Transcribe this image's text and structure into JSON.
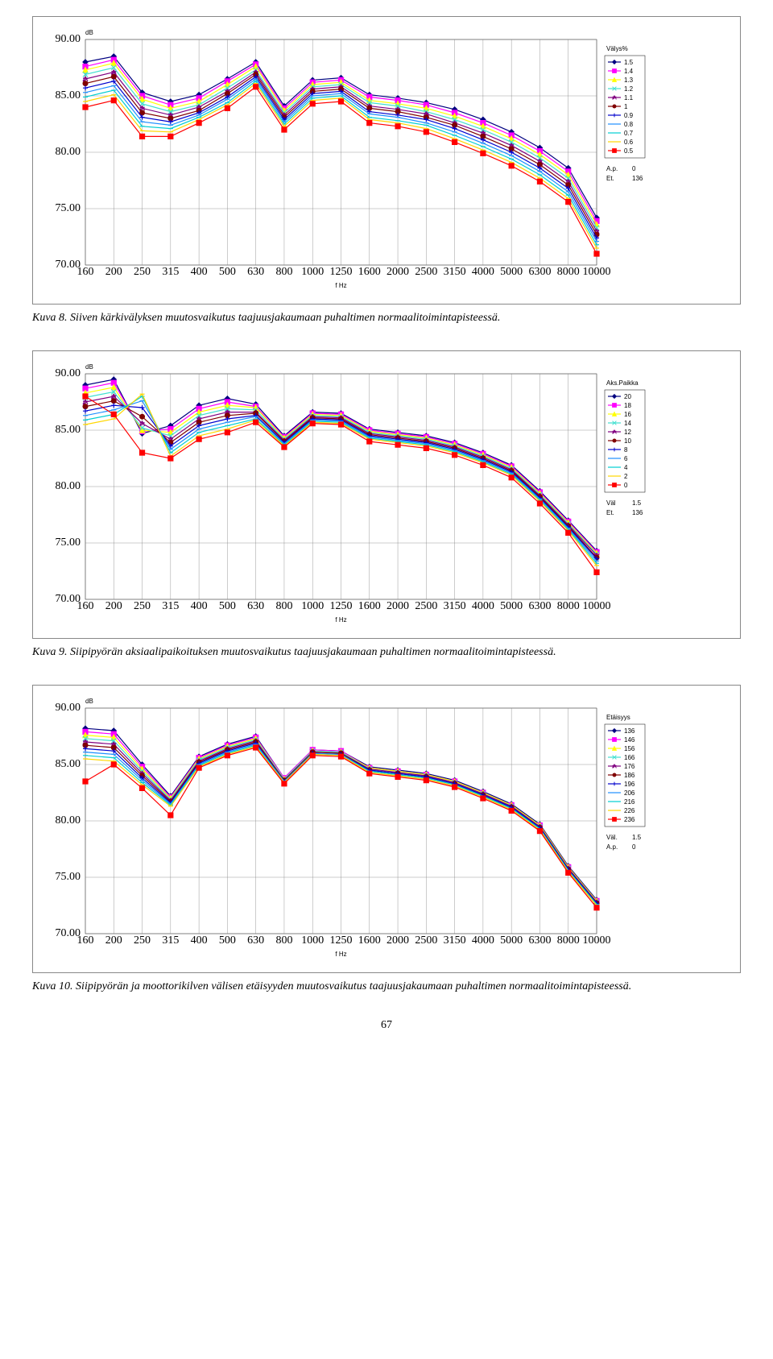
{
  "page_number": "67",
  "charts": [
    {
      "id": "chart1",
      "ylabel": "dB",
      "xlabel": "f Hz",
      "x_categories": [
        "160",
        "200",
        "250",
        "315",
        "400",
        "500",
        "630",
        "800",
        "1000",
        "1250",
        "1600",
        "2000",
        "2500",
        "3150",
        "4000",
        "5000",
        "6300",
        "8000",
        "10000"
      ],
      "y_ticks": [
        70.0,
        75.0,
        80.0,
        85.0,
        90.0
      ],
      "y_tick_labels": [
        "70.00",
        "75.00",
        "80.00",
        "85.00",
        "90.00"
      ],
      "ylim": [
        70,
        90
      ],
      "grid_color": "#808080",
      "bg_color": "#ffffff",
      "legend_title": "Välys%",
      "info": [
        {
          "label": "A.p.",
          "value": "0"
        },
        {
          "label": "Et.",
          "value": "136"
        }
      ],
      "series": [
        {
          "label": "1.5",
          "color": "#000080",
          "marker": "diamond",
          "values": [
            88.0,
            88.5,
            85.3,
            84.5,
            85.1,
            86.5,
            88.0,
            84.1,
            86.4,
            86.6,
            85.1,
            84.8,
            84.4,
            83.8,
            82.9,
            81.8,
            80.4,
            78.6,
            74.2
          ]
        },
        {
          "label": "1.4",
          "color": "#ff00ff",
          "marker": "square",
          "values": [
            87.6,
            88.2,
            85.0,
            84.2,
            84.8,
            86.3,
            87.8,
            83.9,
            86.2,
            86.4,
            84.9,
            84.6,
            84.2,
            83.5,
            82.6,
            81.5,
            80.1,
            78.3,
            73.9
          ]
        },
        {
          "label": "1.3",
          "color": "#ffff00",
          "marker": "triangle",
          "values": [
            87.3,
            87.9,
            84.7,
            83.9,
            84.5,
            86.0,
            87.6,
            83.7,
            86.0,
            86.2,
            84.6,
            84.3,
            83.9,
            83.2,
            82.3,
            81.2,
            79.8,
            78.0,
            73.6
          ]
        },
        {
          "label": "1.2",
          "color": "#40e0d0",
          "marker": "x",
          "values": [
            86.9,
            87.5,
            84.3,
            83.6,
            84.2,
            85.7,
            87.3,
            83.5,
            85.8,
            86.0,
            84.4,
            84.1,
            83.6,
            82.9,
            82.0,
            80.9,
            79.5,
            77.7,
            73.3
          ]
        },
        {
          "label": "1.1",
          "color": "#800080",
          "marker": "star",
          "values": [
            86.5,
            87.1,
            83.9,
            83.3,
            84.0,
            85.4,
            87.1,
            83.3,
            85.6,
            85.8,
            84.1,
            83.8,
            83.4,
            82.6,
            81.7,
            80.6,
            79.2,
            77.4,
            73.0
          ]
        },
        {
          "label": "1",
          "color": "#800000",
          "marker": "circle",
          "values": [
            86.1,
            86.7,
            83.5,
            83.0,
            83.7,
            85.2,
            86.9,
            83.1,
            85.4,
            85.6,
            83.9,
            83.6,
            83.1,
            82.4,
            81.4,
            80.3,
            78.9,
            77.1,
            72.7
          ]
        },
        {
          "label": "0.9",
          "color": "#0000cd",
          "marker": "plus",
          "values": [
            85.7,
            86.3,
            83.1,
            82.7,
            83.5,
            84.9,
            86.7,
            82.9,
            85.2,
            85.4,
            83.6,
            83.3,
            82.9,
            82.1,
            81.1,
            80.0,
            78.6,
            76.8,
            72.4
          ]
        },
        {
          "label": "0.8",
          "color": "#1e90ff",
          "marker": "dash",
          "values": [
            85.3,
            85.9,
            82.7,
            82.4,
            83.3,
            84.7,
            86.5,
            82.7,
            85.0,
            85.2,
            83.4,
            83.1,
            82.6,
            81.8,
            80.8,
            79.7,
            78.3,
            76.5,
            72.1
          ]
        },
        {
          "label": "0.7",
          "color": "#00ced1",
          "marker": "dash",
          "values": [
            84.9,
            85.5,
            82.3,
            82.1,
            83.1,
            84.4,
            86.3,
            82.5,
            84.8,
            85.0,
            83.1,
            82.8,
            82.4,
            81.5,
            80.5,
            79.4,
            78.0,
            76.2,
            71.8
          ]
        },
        {
          "label": "0.6",
          "color": "#ffd700",
          "marker": "dash",
          "values": [
            84.5,
            85.1,
            81.9,
            81.8,
            82.9,
            84.2,
            86.1,
            82.3,
            84.6,
            84.8,
            82.9,
            82.6,
            82.1,
            81.2,
            80.2,
            79.1,
            77.7,
            75.9,
            71.5
          ]
        },
        {
          "label": "0.5",
          "color": "#ff0000",
          "marker": "square",
          "values": [
            84.0,
            84.6,
            81.4,
            81.4,
            82.6,
            83.9,
            85.8,
            82.0,
            84.3,
            84.5,
            82.6,
            82.3,
            81.8,
            80.9,
            79.9,
            78.8,
            77.4,
            75.6,
            71.0
          ]
        }
      ],
      "caption": "Kuva 8. Siiven kärkivälyksen muutosvaikutus taajuusjakaumaan puhaltimen normaalitoimintapisteessä."
    },
    {
      "id": "chart2",
      "ylabel": "dB",
      "xlabel": "f Hz",
      "x_categories": [
        "160",
        "200",
        "250",
        "315",
        "400",
        "500",
        "630",
        "800",
        "1000",
        "1250",
        "1600",
        "2000",
        "2500",
        "3150",
        "4000",
        "5000",
        "6300",
        "8000",
        "10000"
      ],
      "y_ticks": [
        70.0,
        75.0,
        80.0,
        85.0,
        90.0
      ],
      "y_tick_labels": [
        "70.00",
        "75.00",
        "80.00",
        "85.00",
        "90.00"
      ],
      "ylim": [
        70,
        90
      ],
      "grid_color": "#808080",
      "bg_color": "#ffffff",
      "legend_title": "Aks.Paikka",
      "info": [
        {
          "label": "Väl",
          "value": "1.5"
        },
        {
          "label": "Et.",
          "value": "136"
        }
      ],
      "series": [
        {
          "label": "20",
          "color": "#000080",
          "marker": "diamond",
          "values": [
            89.0,
            89.5,
            84.7,
            85.4,
            87.2,
            87.8,
            87.3,
            84.5,
            86.6,
            86.5,
            85.1,
            84.8,
            84.5,
            83.9,
            83.0,
            81.9,
            79.6,
            77.0,
            74.3
          ]
        },
        {
          "label": "18",
          "color": "#ff00ff",
          "marker": "square",
          "values": [
            88.7,
            89.2,
            84.9,
            85.1,
            86.9,
            87.5,
            87.1,
            84.4,
            86.5,
            86.4,
            85.0,
            84.7,
            84.4,
            83.8,
            82.9,
            81.8,
            79.5,
            76.9,
            74.2
          ]
        },
        {
          "label": "16",
          "color": "#ffff00",
          "marker": "triangle",
          "values": [
            88.3,
            88.8,
            85.0,
            84.8,
            86.6,
            87.2,
            87.0,
            84.3,
            86.4,
            86.3,
            84.9,
            84.6,
            84.3,
            83.7,
            82.8,
            81.7,
            79.4,
            76.8,
            74.1
          ]
        },
        {
          "label": "14",
          "color": "#40e0d0",
          "marker": "x",
          "values": [
            87.9,
            88.4,
            85.2,
            84.5,
            86.3,
            86.9,
            86.8,
            84.2,
            86.3,
            86.2,
            84.8,
            84.5,
            84.2,
            83.6,
            82.7,
            81.6,
            79.3,
            76.7,
            74.0
          ]
        },
        {
          "label": "12",
          "color": "#800080",
          "marker": "star",
          "values": [
            87.5,
            88.0,
            85.6,
            84.2,
            86.0,
            86.6,
            86.6,
            84.1,
            86.2,
            86.1,
            84.7,
            84.4,
            84.1,
            83.5,
            82.6,
            81.5,
            79.2,
            76.6,
            73.9
          ]
        },
        {
          "label": "10",
          "color": "#800000",
          "marker": "circle",
          "values": [
            87.1,
            87.6,
            86.2,
            83.9,
            85.7,
            86.3,
            86.5,
            84.0,
            86.1,
            86.0,
            84.6,
            84.3,
            84.0,
            83.4,
            82.5,
            81.4,
            79.1,
            76.5,
            73.7
          ]
        },
        {
          "label": "8",
          "color": "#0000cd",
          "marker": "plus",
          "values": [
            86.7,
            87.2,
            87.0,
            83.6,
            85.4,
            86.0,
            86.3,
            83.9,
            86.0,
            85.9,
            84.5,
            84.2,
            83.9,
            83.3,
            82.4,
            81.3,
            79.0,
            76.4,
            73.6
          ]
        },
        {
          "label": "6",
          "color": "#1e90ff",
          "marker": "dash",
          "values": [
            86.3,
            86.8,
            87.6,
            83.3,
            85.1,
            85.7,
            86.2,
            83.8,
            85.9,
            85.8,
            84.4,
            84.1,
            83.8,
            83.2,
            82.3,
            81.2,
            78.9,
            76.3,
            73.4
          ]
        },
        {
          "label": "4",
          "color": "#00ced1",
          "marker": "dash",
          "values": [
            85.9,
            86.4,
            88.0,
            83.0,
            84.8,
            85.4,
            86.0,
            83.7,
            85.8,
            85.7,
            84.3,
            84.0,
            83.7,
            83.1,
            82.2,
            81.1,
            78.8,
            76.2,
            73.2
          ]
        },
        {
          "label": "2",
          "color": "#ffd700",
          "marker": "dash",
          "values": [
            85.5,
            86.0,
            88.2,
            82.7,
            84.5,
            85.1,
            85.9,
            83.6,
            85.7,
            85.6,
            84.2,
            83.9,
            83.6,
            83.0,
            82.1,
            81.0,
            78.7,
            76.1,
            73.0
          ]
        },
        {
          "label": "0",
          "color": "#ff0000",
          "marker": "square",
          "values": [
            88.0,
            86.4,
            83.0,
            82.5,
            84.2,
            84.8,
            85.7,
            83.5,
            85.6,
            85.5,
            84.0,
            83.7,
            83.4,
            82.8,
            81.9,
            80.8,
            78.5,
            75.9,
            72.4
          ]
        }
      ],
      "caption": "Kuva 9. Siipipyörän aksiaalipaikoituksen muutosvaikutus taajuusjakaumaan puhaltimen normaalitoimintapisteessä."
    },
    {
      "id": "chart3",
      "ylabel": "dB",
      "xlabel": "f Hz",
      "x_categories": [
        "160",
        "200",
        "250",
        "315",
        "400",
        "500",
        "630",
        "800",
        "1000",
        "1250",
        "1600",
        "2000",
        "2500",
        "3150",
        "4000",
        "5000",
        "6300",
        "8000",
        "10000"
      ],
      "y_ticks": [
        70.0,
        75.0,
        80.0,
        85.0,
        90.0
      ],
      "y_tick_labels": [
        "70.00",
        "75.00",
        "80.00",
        "85.00",
        "90.00"
      ],
      "ylim": [
        70,
        90
      ],
      "grid_color": "#808080",
      "bg_color": "#ffffff",
      "legend_title": "Etäisyys",
      "info": [
        {
          "label": "Väl.",
          "value": "1.5"
        },
        {
          "label": "A.p.",
          "value": "0"
        }
      ],
      "series": [
        {
          "label": "136",
          "color": "#000080",
          "marker": "diamond",
          "values": [
            88.2,
            88.0,
            85.0,
            82.2,
            85.7,
            86.8,
            87.5,
            83.8,
            86.3,
            86.2,
            84.8,
            84.5,
            84.2,
            83.6,
            82.6,
            81.5,
            79.7,
            76.0,
            73.0
          ]
        },
        {
          "label": "146",
          "color": "#ff00ff",
          "marker": "square",
          "values": [
            87.9,
            87.7,
            84.8,
            82.1,
            85.6,
            86.7,
            87.4,
            83.8,
            86.3,
            86.2,
            84.7,
            84.4,
            84.1,
            83.5,
            82.5,
            81.4,
            79.6,
            75.9,
            72.9
          ]
        },
        {
          "label": "156",
          "color": "#ffff00",
          "marker": "triangle",
          "values": [
            87.6,
            87.4,
            84.6,
            82.0,
            85.5,
            86.6,
            87.3,
            83.7,
            86.2,
            86.1,
            84.7,
            84.4,
            84.1,
            83.5,
            82.5,
            81.4,
            79.6,
            75.9,
            72.9
          ]
        },
        {
          "label": "166",
          "color": "#40e0d0",
          "marker": "x",
          "values": [
            87.3,
            87.1,
            84.4,
            81.9,
            85.4,
            86.5,
            87.2,
            83.7,
            86.2,
            86.1,
            84.6,
            84.3,
            84.0,
            83.4,
            82.4,
            81.3,
            79.5,
            75.8,
            72.8
          ]
        },
        {
          "label": "176",
          "color": "#800080",
          "marker": "star",
          "values": [
            87.0,
            86.8,
            84.2,
            81.8,
            85.3,
            86.4,
            87.1,
            83.6,
            86.1,
            86.0,
            84.6,
            84.3,
            84.0,
            83.4,
            82.4,
            81.3,
            79.5,
            75.8,
            72.8
          ]
        },
        {
          "label": "186",
          "color": "#800000",
          "marker": "circle",
          "values": [
            86.7,
            86.5,
            84.0,
            81.7,
            85.2,
            86.3,
            87.0,
            83.6,
            86.1,
            86.0,
            84.5,
            84.2,
            83.9,
            83.3,
            82.3,
            81.2,
            79.4,
            75.7,
            72.7
          ]
        },
        {
          "label": "196",
          "color": "#0000cd",
          "marker": "plus",
          "values": [
            86.4,
            86.2,
            83.8,
            81.6,
            85.1,
            86.2,
            86.9,
            83.5,
            86.0,
            85.9,
            84.5,
            84.2,
            83.9,
            83.3,
            82.3,
            81.2,
            79.4,
            75.7,
            72.7
          ]
        },
        {
          "label": "206",
          "color": "#1e90ff",
          "marker": "dash",
          "values": [
            86.1,
            85.9,
            83.6,
            81.5,
            85.0,
            86.1,
            86.8,
            83.5,
            86.0,
            85.9,
            84.4,
            84.1,
            83.8,
            83.2,
            82.2,
            81.1,
            79.3,
            75.6,
            72.6
          ]
        },
        {
          "label": "216",
          "color": "#00ced1",
          "marker": "dash",
          "values": [
            85.8,
            85.6,
            83.4,
            81.4,
            84.9,
            86.0,
            86.7,
            83.4,
            85.9,
            85.8,
            84.4,
            84.1,
            83.8,
            83.2,
            82.2,
            81.1,
            79.3,
            75.6,
            72.6
          ]
        },
        {
          "label": "226",
          "color": "#ffd700",
          "marker": "dash",
          "values": [
            85.5,
            85.3,
            83.2,
            81.3,
            84.8,
            85.9,
            86.6,
            83.4,
            85.9,
            85.8,
            84.3,
            84.0,
            83.7,
            83.1,
            82.1,
            81.0,
            79.2,
            75.5,
            72.5
          ]
        },
        {
          "label": "236",
          "color": "#ff0000",
          "marker": "square",
          "values": [
            83.5,
            85.0,
            82.9,
            80.5,
            84.7,
            85.8,
            86.5,
            83.3,
            85.8,
            85.7,
            84.2,
            83.9,
            83.6,
            83.0,
            82.0,
            80.9,
            79.1,
            75.4,
            72.3
          ]
        }
      ],
      "caption": "Kuva 10. Siipipyörän ja moottorikilven välisen etäisyyden muutosvaikutus taajuusjakaumaan puhaltimen normaalitoimintapisteessä."
    }
  ]
}
